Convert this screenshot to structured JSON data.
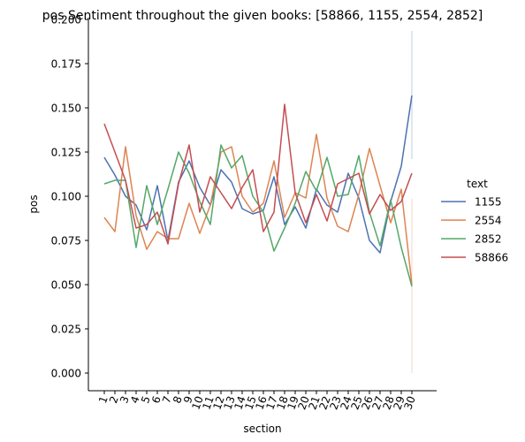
{
  "chart_data": {
    "type": "line",
    "title": "pos Sentiment throughout the given books: [58866, 1155, 2554, 2852]",
    "xlabel": "section",
    "ylabel": "pos",
    "x": [
      "1",
      "2",
      "3",
      "4",
      "5",
      "6",
      "7",
      "8",
      "9",
      "10",
      "11",
      "12",
      "13",
      "14",
      "15",
      "16",
      "17",
      "18",
      "19",
      "20",
      "21",
      "22",
      "23",
      "24",
      "25",
      "26",
      "27",
      "28",
      "29",
      "30"
    ],
    "ylim": [
      -0.01,
      0.2
    ],
    "yticks": [
      "0.000",
      "0.025",
      "0.050",
      "0.075",
      "0.100",
      "0.125",
      "0.150",
      "0.175",
      "0.200"
    ],
    "grid": false,
    "legend": {
      "title": "text",
      "placement": "right"
    },
    "series": [
      {
        "name": "1155",
        "color": "#4c72b0",
        "values": [
          0.122,
          0.112,
          0.1,
          0.095,
          0.081,
          0.106,
          0.075,
          0.108,
          0.12,
          0.105,
          0.095,
          0.115,
          0.108,
          0.093,
          0.09,
          0.092,
          0.111,
          0.084,
          0.094,
          0.082,
          0.104,
          0.095,
          0.091,
          0.113,
          0.099,
          0.075,
          0.068,
          0.097,
          0.117,
          0.157
        ]
      },
      {
        "name": "2554",
        "color": "#dd8452",
        "values": [
          0.088,
          0.08,
          0.128,
          0.089,
          0.07,
          0.08,
          0.076,
          0.076,
          0.096,
          0.079,
          0.095,
          0.125,
          0.128,
          0.1,
          0.091,
          0.096,
          0.12,
          0.088,
          0.102,
          0.099,
          0.135,
          0.099,
          0.083,
          0.08,
          0.101,
          0.127,
          0.106,
          0.085,
          0.104,
          0.05
        ]
      },
      {
        "name": "2852",
        "color": "#55a868",
        "values": [
          0.107,
          0.109,
          0.109,
          0.071,
          0.106,
          0.084,
          0.104,
          0.125,
          0.113,
          0.097,
          0.084,
          0.129,
          0.116,
          0.123,
          0.1,
          0.091,
          0.069,
          0.082,
          0.096,
          0.114,
          0.103,
          0.122,
          0.1,
          0.101,
          0.123,
          0.091,
          0.072,
          0.098,
          0.071,
          0.049
        ]
      },
      {
        "name": "58866",
        "color": "#c44e52",
        "values": [
          0.141,
          0.125,
          0.109,
          0.082,
          0.084,
          0.091,
          0.073,
          0.107,
          0.129,
          0.091,
          0.111,
          0.102,
          0.093,
          0.105,
          0.115,
          0.08,
          0.091,
          0.152,
          0.102,
          0.085,
          0.101,
          0.086,
          0.107,
          0.11,
          0.113,
          0.09,
          0.101,
          0.092,
          0.097,
          0.113
        ]
      }
    ]
  }
}
